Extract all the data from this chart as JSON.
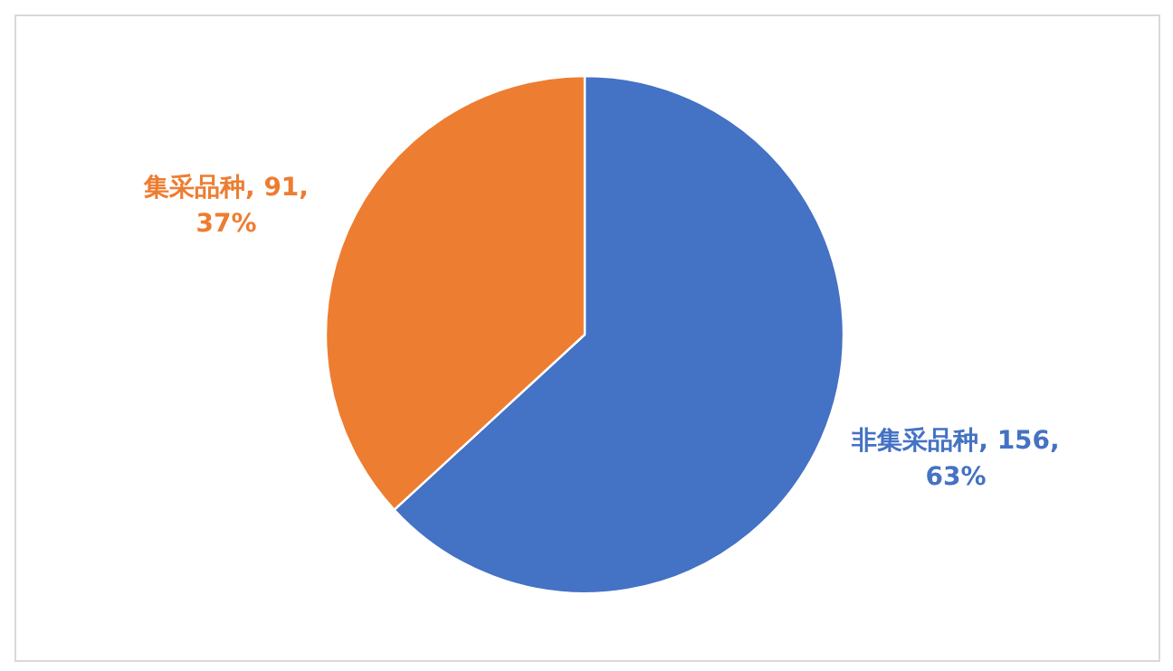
{
  "chart_data": {
    "type": "pie",
    "categories": [
      "非集采品种",
      "集采品种"
    ],
    "values": [
      156,
      91
    ],
    "colors": [
      "#4472c4",
      "#ed7d31"
    ],
    "value_labels": [
      "156, 63%",
      "91, 37%"
    ],
    "legend": false
  }
}
